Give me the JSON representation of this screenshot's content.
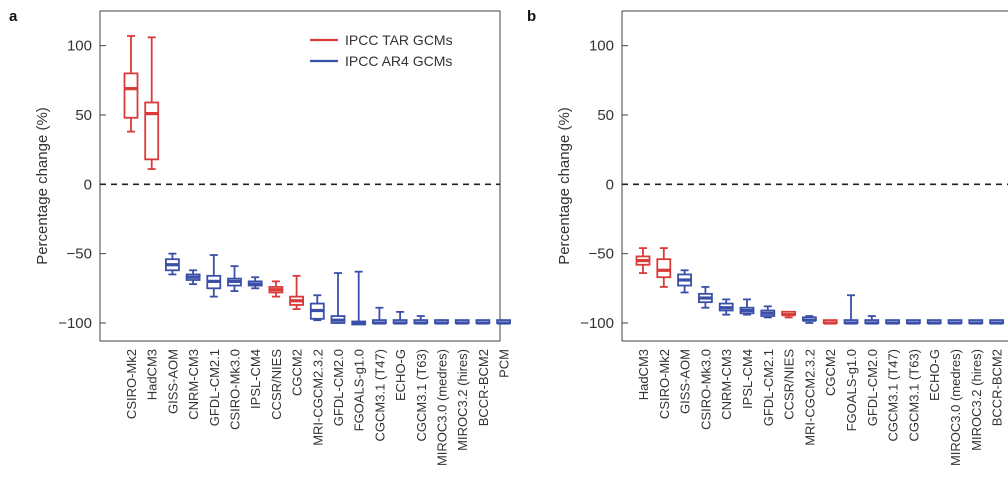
{
  "chart_data": [
    {
      "panel": "a",
      "type": "box",
      "ylabel": "Percentage change (%)",
      "ylim": [
        -113,
        125
      ],
      "yticks": [
        -100,
        -50,
        0,
        50,
        100
      ],
      "ytick_labels": [
        "−100",
        "−50",
        "0",
        "50",
        "100"
      ],
      "reference_line": 0,
      "legend": {
        "placement": "top-right",
        "entries": [
          {
            "label": "IPCC TAR GCMs",
            "color": "#d93a3a"
          },
          {
            "label": "IPCC AR4 GCMs",
            "color": "#3a4fa8"
          }
        ]
      },
      "categories": [
        {
          "name": "CSIRO-Mk2",
          "group": "TAR",
          "min": 38,
          "q1": 48,
          "median": 69,
          "q3": 80,
          "max": 107
        },
        {
          "name": "HadCM3",
          "group": "TAR",
          "min": 11,
          "q1": 18,
          "median": 51,
          "q3": 59,
          "max": 106
        },
        {
          "name": "GISS-AOM",
          "group": "AR4",
          "min": -65,
          "q1": -62,
          "median": -58,
          "q3": -54,
          "max": -50
        },
        {
          "name": "CNRM-CM3",
          "group": "AR4",
          "min": -72,
          "q1": -69,
          "median": -67,
          "q3": -65,
          "max": -62
        },
        {
          "name": "GFDL-CM2.1",
          "group": "AR4",
          "min": -81,
          "q1": -75,
          "median": -70,
          "q3": -66,
          "max": -51
        },
        {
          "name": "CSIRO-Mk3.0",
          "group": "AR4",
          "min": -77,
          "q1": -73,
          "median": -70,
          "q3": -68,
          "max": -59
        },
        {
          "name": "IPSL-CM4",
          "group": "AR4",
          "min": -75,
          "q1": -73,
          "median": -72,
          "q3": -70,
          "max": -67
        },
        {
          "name": "CCSR/NIES",
          "group": "TAR",
          "min": -81,
          "q1": -78,
          "median": -76,
          "q3": -74,
          "max": -70
        },
        {
          "name": "CGCM2",
          "group": "TAR",
          "min": -90,
          "q1": -87,
          "median": -84,
          "q3": -81,
          "max": -66
        },
        {
          "name": "MRI-CGCM2.3.2",
          "group": "AR4",
          "min": -98,
          "q1": -97,
          "median": -91,
          "q3": -86,
          "max": -80
        },
        {
          "name": "GFDL-CM2.0",
          "group": "AR4",
          "min": -100,
          "q1": -100,
          "median": -98,
          "q3": -95,
          "max": -64
        },
        {
          "name": "FGOALS-g1.0",
          "group": "AR4",
          "min": -100,
          "q1": -100,
          "median": -100,
          "q3": -100,
          "max": -63
        },
        {
          "name": "CGCM3.1 (T47)",
          "group": "AR4",
          "min": -100,
          "q1": -100,
          "median": -100,
          "q3": -99,
          "max": -89
        },
        {
          "name": "ECHO-G",
          "group": "AR4",
          "min": -100,
          "q1": -100,
          "median": -100,
          "q3": -99,
          "max": -92
        },
        {
          "name": "CGCM3.1 (T63)",
          "group": "AR4",
          "min": -100,
          "q1": -100,
          "median": -100,
          "q3": -99,
          "max": -95
        },
        {
          "name": "MIROC3.0 (medres)",
          "group": "AR4",
          "min": -100,
          "q1": -100,
          "median": -100,
          "q3": -99,
          "max": -98
        },
        {
          "name": "MIROC3.2 (hires)",
          "group": "AR4",
          "min": -100,
          "q1": -100,
          "median": -100,
          "q3": -99,
          "max": -99
        },
        {
          "name": "BCCR-BCM2",
          "group": "AR4",
          "min": -100,
          "q1": -100,
          "median": -100,
          "q3": -99,
          "max": -99
        },
        {
          "name": "PCM",
          "group": "AR4",
          "min": -100,
          "q1": -100,
          "median": -100,
          "q3": -99,
          "max": -99
        }
      ]
    },
    {
      "panel": "b",
      "type": "box",
      "ylabel": "Percentage change (%)",
      "ylim": [
        -113,
        125
      ],
      "yticks": [
        -100,
        -50,
        0,
        50,
        100
      ],
      "ytick_labels": [
        "−100",
        "−50",
        "0",
        "50",
        "100"
      ],
      "reference_line": 0,
      "categories": [
        {
          "name": "HadCM3",
          "group": "TAR",
          "min": -64,
          "q1": -58,
          "median": -55,
          "q3": -52,
          "max": -46
        },
        {
          "name": "CSIRO-Mk2",
          "group": "TAR",
          "min": -74,
          "q1": -67,
          "median": -62,
          "q3": -54,
          "max": -46
        },
        {
          "name": "GISS-AOM",
          "group": "AR4",
          "min": -78,
          "q1": -73,
          "median": -69,
          "q3": -65,
          "max": -62
        },
        {
          "name": "CSIRO-Mk3.0",
          "group": "AR4",
          "min": -89,
          "q1": -85,
          "median": -82,
          "q3": -79,
          "max": -74
        },
        {
          "name": "CNRM-CM3",
          "group": "AR4",
          "min": -94,
          "q1": -91,
          "median": -89,
          "q3": -86,
          "max": -83
        },
        {
          "name": "IPSL-CM4",
          "group": "AR4",
          "min": -94,
          "q1": -93,
          "median": -91,
          "q3": -89,
          "max": -83
        },
        {
          "name": "GFDL-CM2.1",
          "group": "AR4",
          "min": -96,
          "q1": -95,
          "median": -93,
          "q3": -91,
          "max": -88
        },
        {
          "name": "CCSR/NIES",
          "group": "TAR",
          "min": -96,
          "q1": -95,
          "median": -94,
          "q3": -93,
          "max": -92
        },
        {
          "name": "MRI-CGCM2.3.2",
          "group": "AR4",
          "min": -100,
          "q1": -99,
          "median": -98,
          "q3": -97,
          "max": -95
        },
        {
          "name": "CGCM2",
          "group": "TAR",
          "min": -100,
          "q1": -100,
          "median": -100,
          "q3": -99,
          "max": -99
        },
        {
          "name": "FGOALS-g1.0",
          "group": "AR4",
          "min": -100,
          "q1": -100,
          "median": -100,
          "q3": -99,
          "max": -80
        },
        {
          "name": "GFDL-CM2.0",
          "group": "AR4",
          "min": -100,
          "q1": -100,
          "median": -100,
          "q3": -99,
          "max": -95
        },
        {
          "name": "CGCM3.1 (T47)",
          "group": "AR4",
          "min": -100,
          "q1": -100,
          "median": -100,
          "q3": -99,
          "max": -99
        },
        {
          "name": "CGCM3.1 (T63)",
          "group": "AR4",
          "min": -100,
          "q1": -100,
          "median": -100,
          "q3": -99,
          "max": -99
        },
        {
          "name": "ECHO-G",
          "group": "AR4",
          "min": -100,
          "q1": -100,
          "median": -100,
          "q3": -99,
          "max": -99
        },
        {
          "name": "MIROC3.0 (medres)",
          "group": "AR4",
          "min": -100,
          "q1": -100,
          "median": -100,
          "q3": -99,
          "max": -99
        },
        {
          "name": "MIROC3.2 (hires)",
          "group": "AR4",
          "min": -100,
          "q1": -100,
          "median": -100,
          "q3": -99,
          "max": -99
        },
        {
          "name": "BCCR-BCM2",
          "group": "AR4",
          "min": -100,
          "q1": -100,
          "median": -100,
          "q3": -99,
          "max": -99
        },
        {
          "name": "PCM",
          "group": "AR4",
          "min": -100,
          "q1": -100,
          "median": -100,
          "q3": -99,
          "max": -99
        }
      ]
    }
  ],
  "colors": {
    "TAR": "#d93a3a",
    "AR4": "#3a4fa8"
  }
}
